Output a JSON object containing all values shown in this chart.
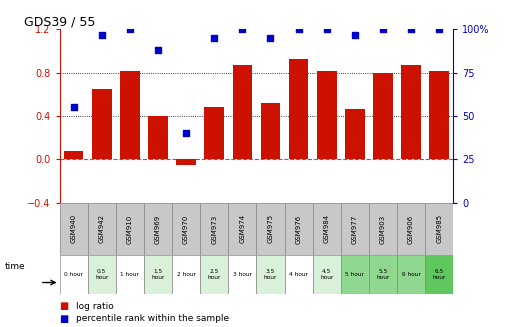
{
  "title": "GDS39 / 55",
  "samples": [
    "GSM940",
    "GSM942",
    "GSM910",
    "GSM969",
    "GSM970",
    "GSM973",
    "GSM974",
    "GSM975",
    "GSM976",
    "GSM984",
    "GSM977",
    "GSM903",
    "GSM906",
    "GSM985"
  ],
  "time_labels": [
    "0 hour",
    "0.5\nhour",
    "1 hour",
    "1.5\nhour",
    "2 hour",
    "2.5\nhour",
    "3 hour",
    "3.5\nhour",
    "4 hour",
    "4.5\nhour",
    "5 hour",
    "5.5\nhour",
    "6 hour",
    "6.5\nhour"
  ],
  "log_ratio": [
    0.08,
    0.65,
    0.82,
    0.4,
    -0.05,
    0.48,
    0.87,
    0.52,
    0.93,
    0.82,
    0.47,
    0.8,
    0.87,
    0.82
  ],
  "percentile_vals": [
    55,
    97,
    100,
    88,
    40,
    95,
    100,
    95,
    100,
    100,
    97,
    100,
    100,
    100
  ],
  "bar_color": "#cc1100",
  "dot_color": "#0000cc",
  "ylim_left": [
    -0.4,
    1.2
  ],
  "ylim_right": [
    0,
    100
  ],
  "yticks_left": [
    -0.4,
    0.0,
    0.4,
    0.8,
    1.2
  ],
  "yticks_right": [
    0,
    25,
    50,
    75,
    100
  ],
  "hlines_dotted": [
    0.4,
    0.8
  ],
  "hline_zero_dashed": 0.0,
  "time_colors": [
    "#ffffff",
    "#d9f0d9",
    "#ffffff",
    "#d9f0d9",
    "#ffffff",
    "#d9f0d9",
    "#ffffff",
    "#d9f0d9",
    "#ffffff",
    "#d9f0d9",
    "#90d890",
    "#90d890",
    "#90d890",
    "#5ec85e"
  ],
  "gsm_bg": "#c8c8c8",
  "gsm_border": "#888888",
  "legend_red": "log ratio",
  "legend_blue": "percentile rank within the sample",
  "bar_width": 0.7
}
